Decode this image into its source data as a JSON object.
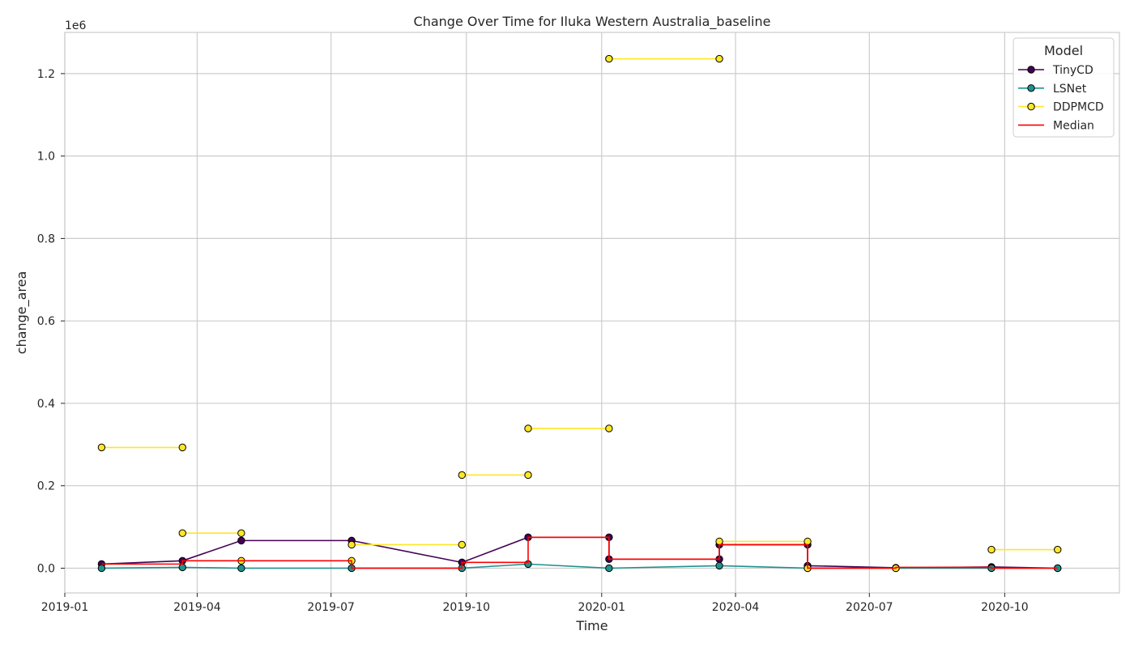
{
  "chart_data": {
    "type": "line",
    "title": "Change Over Time for Iluka Western Australia_baseline",
    "xlabel": "Time",
    "ylabel": "change_area",
    "y_offset_label": "1e6",
    "y_scale_factor": 1000000,
    "xlim": [
      "2019-01-01",
      "2020-12-18"
    ],
    "ylim": [
      -0.06,
      1.3
    ],
    "x_ticks": [
      {
        "date": "2019-01-01",
        "label": "2019-01"
      },
      {
        "date": "2019-04-01",
        "label": "2019-04"
      },
      {
        "date": "2019-07-01",
        "label": "2019-07"
      },
      {
        "date": "2019-10-01",
        "label": "2019-10"
      },
      {
        "date": "2020-01-01",
        "label": "2020-01"
      },
      {
        "date": "2020-04-01",
        "label": "2020-04"
      },
      {
        "date": "2020-07-01",
        "label": "2020-07"
      },
      {
        "date": "2020-10-01",
        "label": "2020-10"
      }
    ],
    "y_ticks": [
      {
        "value": 0.0,
        "label": "0.0"
      },
      {
        "value": 0.2,
        "label": "0.2"
      },
      {
        "value": 0.4,
        "label": "0.4"
      },
      {
        "value": 0.6,
        "label": "0.6"
      },
      {
        "value": 0.8,
        "label": "0.8"
      },
      {
        "value": 1.0,
        "label": "1.0"
      },
      {
        "value": 1.2,
        "label": "1.2"
      }
    ],
    "grid": true,
    "legend": {
      "title": "Model",
      "placement": "top-right"
    },
    "series": [
      {
        "name": "TinyCD",
        "color": "#440154",
        "marker": true,
        "step": "post",
        "points": [
          {
            "x": "2019-01-26",
            "y": 0.01
          },
          {
            "x": "2019-03-22",
            "y": 0.018
          },
          {
            "x": "2019-05-01",
            "y": 0.067
          },
          {
            "x": "2019-07-15",
            "y": 0.067
          },
          {
            "x": "2019-09-28",
            "y": 0.014
          },
          {
            "x": "2019-11-12",
            "y": 0.075
          },
          {
            "x": "2020-01-06",
            "y": 0.075
          },
          {
            "x": "2020-01-06",
            "y": 0.022
          },
          {
            "x": "2020-03-21",
            "y": 0.022
          },
          {
            "x": "2020-03-21",
            "y": 0.057
          },
          {
            "x": "2020-05-20",
            "y": 0.057
          },
          {
            "x": "2020-05-20",
            "y": 0.006
          },
          {
            "x": "2020-07-19",
            "y": 0.001
          },
          {
            "x": "2020-09-22",
            "y": 0.003
          },
          {
            "x": "2020-11-06",
            "y": 0.0
          }
        ]
      },
      {
        "name": "LSNet",
        "color": "#21918c",
        "marker": true,
        "step": "post",
        "points": [
          {
            "x": "2019-01-26",
            "y": 0.0
          },
          {
            "x": "2019-03-22",
            "y": 0.002
          },
          {
            "x": "2019-05-01",
            "y": 0.0
          },
          {
            "x": "2019-07-15",
            "y": 0.0
          },
          {
            "x": "2019-09-28",
            "y": 0.0
          },
          {
            "x": "2019-11-12",
            "y": 0.01
          },
          {
            "x": "2020-01-06",
            "y": 0.0
          },
          {
            "x": "2020-03-21",
            "y": 0.006
          },
          {
            "x": "2020-05-20",
            "y": 0.0
          },
          {
            "x": "2020-07-19",
            "y": 0.0
          },
          {
            "x": "2020-09-22",
            "y": 0.0
          },
          {
            "x": "2020-11-06",
            "y": 0.0
          }
        ]
      },
      {
        "name": "DDPMCD",
        "color": "#fde725",
        "marker": true,
        "step": "segments",
        "segments": [
          [
            {
              "x": "2019-01-26",
              "y": 0.293
            },
            {
              "x": "2019-03-22",
              "y": 0.293
            }
          ],
          [
            {
              "x": "2019-03-22",
              "y": 0.085
            },
            {
              "x": "2019-05-01",
              "y": 0.085
            }
          ],
          [
            {
              "x": "2019-05-01",
              "y": 0.018
            }
          ],
          [
            {
              "x": "2019-07-15",
              "y": 0.057
            },
            {
              "x": "2019-09-28",
              "y": 0.057
            }
          ],
          [
            {
              "x": "2019-07-15",
              "y": 0.018
            }
          ],
          [
            {
              "x": "2019-09-28",
              "y": 0.226
            },
            {
              "x": "2019-11-12",
              "y": 0.226
            }
          ],
          [
            {
              "x": "2019-11-12",
              "y": 0.339
            },
            {
              "x": "2020-01-06",
              "y": 0.339
            }
          ],
          [
            {
              "x": "2020-01-06",
              "y": 1.236
            },
            {
              "x": "2020-03-21",
              "y": 1.236
            }
          ],
          [
            {
              "x": "2020-03-21",
              "y": 0.065
            },
            {
              "x": "2020-05-20",
              "y": 0.065
            }
          ],
          [
            {
              "x": "2020-05-20",
              "y": 0.0
            }
          ],
          [
            {
              "x": "2020-07-19",
              "y": 0.0
            }
          ],
          [
            {
              "x": "2020-09-22",
              "y": 0.045
            },
            {
              "x": "2020-11-06",
              "y": 0.045
            }
          ]
        ]
      },
      {
        "name": "Median",
        "color": "#ff0000",
        "marker": false,
        "points": [
          {
            "x": "2019-01-26",
            "y": 0.01
          },
          {
            "x": "2019-03-22",
            "y": 0.01
          },
          {
            "x": "2019-03-22",
            "y": 0.018
          },
          {
            "x": "2019-07-15",
            "y": 0.018
          },
          {
            "x": "2019-07-15",
            "y": 0.0
          },
          {
            "x": "2019-09-28",
            "y": 0.0
          },
          {
            "x": "2019-09-28",
            "y": 0.014
          },
          {
            "x": "2019-11-12",
            "y": 0.014
          },
          {
            "x": "2019-11-12",
            "y": 0.075
          },
          {
            "x": "2020-01-06",
            "y": 0.075
          },
          {
            "x": "2020-01-06",
            "y": 0.022
          },
          {
            "x": "2020-03-21",
            "y": 0.022
          },
          {
            "x": "2020-03-21",
            "y": 0.057
          },
          {
            "x": "2020-05-20",
            "y": 0.057
          },
          {
            "x": "2020-05-20",
            "y": 0.0
          },
          {
            "x": "2020-07-19",
            "y": 0.0
          },
          {
            "x": "2020-07-19",
            "y": 0.002
          },
          {
            "x": "2020-09-22",
            "y": 0.002
          },
          {
            "x": "2020-09-22",
            "y": 0.0
          },
          {
            "x": "2020-11-06",
            "y": 0.0
          }
        ]
      }
    ]
  }
}
